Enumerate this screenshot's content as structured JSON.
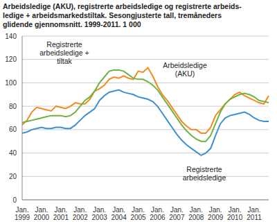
{
  "chart_data": {
    "type": "line",
    "title": "Arbeidsledige (AKU), registrerte arbeidsledige og registrerte arbeids-\nledige + arbeidsmarkedstiltak. Sesongjusterte tall, tremåneders\nglidende gjennomsnitt. 1999-2011. 1 000",
    "categories": [
      "Jan. 1999",
      null,
      null,
      null,
      "Jan. 2000",
      null,
      null,
      null,
      "Jan. 2001",
      null,
      null,
      null,
      "Jan. 2002",
      null,
      null,
      null,
      "Jan. 2003",
      null,
      null,
      null,
      "Jan. 2004",
      null,
      null,
      null,
      "Jan. 2005",
      null,
      null,
      null,
      "Jan. 2006",
      null,
      null,
      null,
      "Jan. 2007",
      null,
      null,
      null,
      "Jan. 2008",
      null,
      null,
      null,
      "Jan. 2009",
      null,
      null,
      null,
      "Jan. 2010",
      null,
      null,
      null,
      "Jan. 2011",
      null,
      null,
      null
    ],
    "series": [
      {
        "name": "Arbeidsledige (AKU)",
        "color": "#f28a1e",
        "values": [
          64,
          68,
          75,
          79,
          78,
          77,
          76,
          80,
          79,
          78,
          80,
          83,
          82,
          82,
          86,
          93,
          95,
          98,
          103,
          105,
          104,
          106,
          104,
          103,
          110,
          109,
          113,
          106,
          97,
          90,
          85,
          79,
          73,
          67,
          63,
          60,
          60,
          57,
          57,
          62,
          72,
          77,
          82,
          86,
          90,
          92,
          89,
          87,
          85,
          83,
          82,
          89
        ]
      },
      {
        "name": "Registrerte arbeidsledige + tiltak",
        "color": "#6cb33f",
        "values": [
          66,
          67,
          68,
          69,
          70,
          71,
          72,
          72,
          72,
          71,
          72,
          75,
          80,
          85,
          88,
          93,
          100,
          105,
          110,
          111,
          111,
          110,
          107,
          104,
          103,
          103,
          101,
          98,
          94,
          88,
          82,
          76,
          70,
          64,
          59,
          55,
          52,
          50,
          50,
          55,
          65,
          75,
          82,
          86,
          88,
          90,
          91,
          90,
          88,
          85,
          84,
          83
        ]
      },
      {
        "name": "Registrerte arbeidsledige",
        "color": "#3e8fcd",
        "values": [
          57,
          58,
          60,
          61,
          62,
          61,
          61,
          62,
          62,
          61,
          61,
          64,
          68,
          72,
          75,
          78,
          85,
          89,
          92,
          93,
          94,
          92,
          91,
          90,
          88,
          87,
          86,
          84,
          80,
          74,
          68,
          62,
          56,
          51,
          47,
          44,
          41,
          38,
          40,
          44,
          55,
          65,
          70,
          72,
          73,
          74,
          75,
          73,
          70,
          68,
          67,
          67
        ]
      }
    ],
    "ylim": [
      0,
      140
    ],
    "yticks": [
      0,
      20,
      40,
      60,
      80,
      100,
      120,
      140
    ],
    "grid": true
  }
}
